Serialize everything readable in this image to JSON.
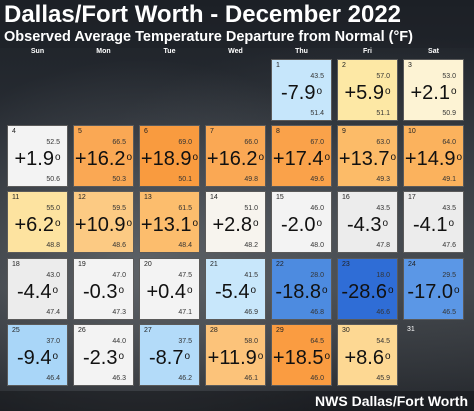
{
  "title": "Dallas/Fort Worth - December 2022",
  "subtitle": "Observed Average Temperature Departure from Normal (°F)",
  "credit": "NWS Dallas/Fort Worth",
  "weekdays": [
    "Sun",
    "Mon",
    "Tue",
    "Wed",
    "Thu",
    "Fri",
    "Sat"
  ],
  "days": [
    {
      "day": "1",
      "hi": "43.5",
      "dep": "-7.9",
      "lo": "51.4",
      "color": "#c6e6fb"
    },
    {
      "day": "2",
      "hi": "57.0",
      "dep": "+5.9",
      "lo": "51.1",
      "color": "#fde8a5"
    },
    {
      "day": "3",
      "hi": "53.0",
      "dep": "+2.1",
      "lo": "50.9",
      "color": "#fdf3d4"
    },
    {
      "day": "4",
      "hi": "52.5",
      "dep": "+1.9",
      "lo": "50.6",
      "color": "#f3f3f3"
    },
    {
      "day": "5",
      "hi": "66.5",
      "dep": "+16.2",
      "lo": "50.3",
      "color": "#faa854"
    },
    {
      "day": "6",
      "hi": "69.0",
      "dep": "+18.9",
      "lo": "50.1",
      "color": "#f99b3f"
    },
    {
      "day": "7",
      "hi": "66.0",
      "dep": "+16.2",
      "lo": "49.8",
      "color": "#faa854"
    },
    {
      "day": "8",
      "hi": "67.0",
      "dep": "+17.4",
      "lo": "49.6",
      "color": "#faa24a"
    },
    {
      "day": "9",
      "hi": "63.0",
      "dep": "+13.7",
      "lo": "49.3",
      "color": "#fcbb68"
    },
    {
      "day": "10",
      "hi": "64.0",
      "dep": "+14.9",
      "lo": "49.1",
      "color": "#fbb25d"
    },
    {
      "day": "11",
      "hi": "55.0",
      "dep": "+6.2",
      "lo": "48.8",
      "color": "#fde3a0"
    },
    {
      "day": "12",
      "hi": "59.5",
      "dep": "+10.9",
      "lo": "48.6",
      "color": "#fcca83"
    },
    {
      "day": "13",
      "hi": "61.5",
      "dep": "+13.1",
      "lo": "48.4",
      "color": "#fcbd6d"
    },
    {
      "day": "14",
      "hi": "51.0",
      "dep": "+2.8",
      "lo": "48.2",
      "color": "#f7f4ee"
    },
    {
      "day": "15",
      "hi": "46.0",
      "dep": "-2.0",
      "lo": "48.0",
      "color": "#f3f3f3"
    },
    {
      "day": "16",
      "hi": "43.5",
      "dep": "-4.3",
      "lo": "47.8",
      "color": "#ececec"
    },
    {
      "day": "17",
      "hi": "43.5",
      "dep": "-4.1",
      "lo": "47.6",
      "color": "#ececec"
    },
    {
      "day": "18",
      "hi": "43.0",
      "dep": "-4.4",
      "lo": "47.4",
      "color": "#ececec"
    },
    {
      "day": "19",
      "hi": "47.0",
      "dep": "-0.3",
      "lo": "47.3",
      "color": "#f3f3f3"
    },
    {
      "day": "20",
      "hi": "47.5",
      "dep": "+0.4",
      "lo": "47.1",
      "color": "#f3f3f3"
    },
    {
      "day": "21",
      "hi": "41.5",
      "dep": "-5.4",
      "lo": "46.9",
      "color": "#c8e7fb"
    },
    {
      "day": "22",
      "hi": "28.0",
      "dep": "-18.8",
      "lo": "46.8",
      "color": "#4d8be0"
    },
    {
      "day": "23",
      "hi": "18.0",
      "dep": "-28.6",
      "lo": "46.6",
      "color": "#2f6dd6"
    },
    {
      "day": "24",
      "hi": "29.5",
      "dep": "-17.0",
      "lo": "46.5",
      "color": "#5b97e6"
    },
    {
      "day": "25",
      "hi": "37.0",
      "dep": "-9.4",
      "lo": "46.4",
      "color": "#a9d6f8"
    },
    {
      "day": "26",
      "hi": "44.0",
      "dep": "-2.3",
      "lo": "46.3",
      "color": "#f3f3f3"
    },
    {
      "day": "27",
      "hi": "37.5",
      "dep": "-8.7",
      "lo": "46.2",
      "color": "#b3dbf9"
    },
    {
      "day": "28",
      "hi": "58.0",
      "dep": "+11.9",
      "lo": "46.1",
      "color": "#fcc37a"
    },
    {
      "day": "29",
      "hi": "64.5",
      "dep": "+18.5",
      "lo": "46.0",
      "color": "#fa9c41"
    },
    {
      "day": "30",
      "hi": "54.5",
      "dep": "+8.6",
      "lo": "45.9",
      "color": "#fdd893"
    },
    {
      "day": "31",
      "hi": "",
      "dep": "",
      "lo": "",
      "color": "transparent"
    }
  ]
}
